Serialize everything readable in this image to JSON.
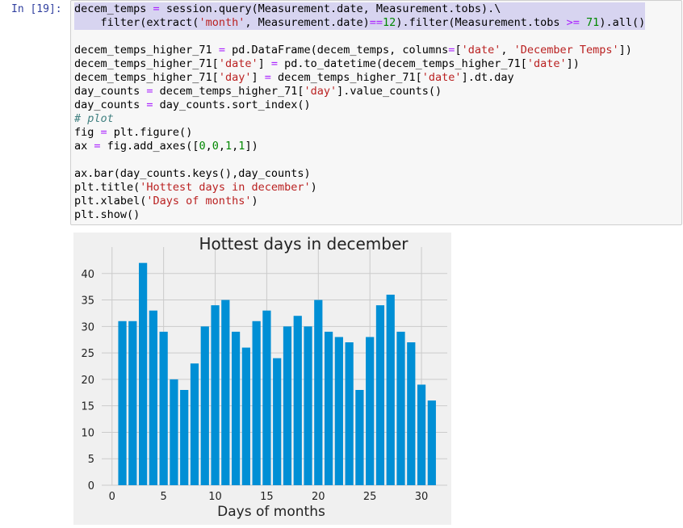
{
  "cell": {
    "prompt": "In [19]:",
    "lines": [
      [
        [
          "decem_temps ",
          "n"
        ],
        [
          "=",
          "op"
        ],
        [
          " session.query(Measurement.date, Measurement.tobs).\\",
          "n"
        ]
      ],
      [
        [
          "    filter(extract(",
          "n"
        ],
        [
          "'month'",
          "str"
        ],
        [
          ", Measurement.date)",
          "n"
        ],
        [
          "==",
          "op"
        ],
        [
          "12",
          "num"
        ],
        [
          ").filter(Measurement.tobs ",
          "n"
        ],
        [
          ">=",
          "op"
        ],
        [
          " ",
          "n"
        ],
        [
          "71",
          "num"
        ],
        [
          ").all()",
          "n"
        ]
      ],
      [
        [
          "",
          "n"
        ]
      ],
      [
        [
          "decem_temps_higher_71 ",
          "n"
        ],
        [
          "=",
          "op"
        ],
        [
          " pd.DataFrame(decem_temps, columns",
          "n"
        ],
        [
          "=",
          "op"
        ],
        [
          "[",
          "n"
        ],
        [
          "'date'",
          "str"
        ],
        [
          ", ",
          "n"
        ],
        [
          "'December Temps'",
          "str"
        ],
        [
          "])",
          "n"
        ]
      ],
      [
        [
          "decem_temps_higher_71[",
          "n"
        ],
        [
          "'date'",
          "str"
        ],
        [
          "] ",
          "n"
        ],
        [
          "=",
          "op"
        ],
        [
          " pd.to_datetime(decem_temps_higher_71[",
          "n"
        ],
        [
          "'date'",
          "str"
        ],
        [
          "])",
          "n"
        ]
      ],
      [
        [
          "decem_temps_higher_71[",
          "n"
        ],
        [
          "'day'",
          "str"
        ],
        [
          "] ",
          "n"
        ],
        [
          "=",
          "op"
        ],
        [
          " decem_temps_higher_71[",
          "n"
        ],
        [
          "'date'",
          "str"
        ],
        [
          "].dt.day",
          "n"
        ]
      ],
      [
        [
          "day_counts ",
          "n"
        ],
        [
          "=",
          "op"
        ],
        [
          " decem_temps_higher_71[",
          "n"
        ],
        [
          "'day'",
          "str"
        ],
        [
          "].value_counts()",
          "n"
        ]
      ],
      [
        [
          "day_counts ",
          "n"
        ],
        [
          "=",
          "op"
        ],
        [
          " day_counts.sort_index()",
          "n"
        ]
      ],
      [
        [
          "# plot",
          "com"
        ]
      ],
      [
        [
          "fig ",
          "n"
        ],
        [
          "=",
          "op"
        ],
        [
          " plt.figure()",
          "n"
        ]
      ],
      [
        [
          "ax ",
          "n"
        ],
        [
          "=",
          "op"
        ],
        [
          " fig.add_axes([",
          "n"
        ],
        [
          "0",
          "num"
        ],
        [
          ",",
          "n"
        ],
        [
          "0",
          "num"
        ],
        [
          ",",
          "n"
        ],
        [
          "1",
          "num"
        ],
        [
          ",",
          "n"
        ],
        [
          "1",
          "num"
        ],
        [
          "])",
          "n"
        ]
      ],
      [
        [
          "",
          "n"
        ]
      ],
      [
        [
          "ax.bar(day_counts.keys(),day_counts)",
          "n"
        ]
      ],
      [
        [
          "plt.title(",
          "n"
        ],
        [
          "'Hottest days in december'",
          "str"
        ],
        [
          ")",
          "n"
        ]
      ],
      [
        [
          "plt.xlabel(",
          "n"
        ],
        [
          "'Days of months'",
          "str"
        ],
        [
          ")",
          "n"
        ]
      ],
      [
        [
          "plt.show()",
          "n"
        ]
      ]
    ]
  },
  "chart_data": {
    "type": "bar",
    "title": "Hottest days in december",
    "xlabel": "Days of months",
    "ylabel": "",
    "x": [
      1,
      2,
      3,
      4,
      5,
      6,
      7,
      8,
      9,
      10,
      11,
      12,
      13,
      14,
      15,
      16,
      17,
      18,
      19,
      20,
      21,
      22,
      23,
      24,
      25,
      26,
      27,
      28,
      29,
      30,
      31
    ],
    "values": [
      31,
      31,
      42,
      33,
      29,
      20,
      18,
      23,
      30,
      34,
      35,
      29,
      26,
      31,
      33,
      24,
      30,
      32,
      30,
      35,
      29,
      28,
      27,
      18,
      28,
      34,
      36,
      29,
      27,
      19,
      16
    ],
    "xlim": [
      -1,
      32.5
    ],
    "ylim": [
      0,
      45
    ],
    "xticks": [
      "0",
      "5",
      "10",
      "15",
      "20",
      "25",
      "30"
    ],
    "yticks": [
      "0",
      "5",
      "10",
      "15",
      "20",
      "25",
      "30",
      "35",
      "40"
    ],
    "grid": true,
    "colors": {
      "bar": "#008fd5",
      "background": "#f0f0f0",
      "grid": "#cbcbcb"
    }
  }
}
